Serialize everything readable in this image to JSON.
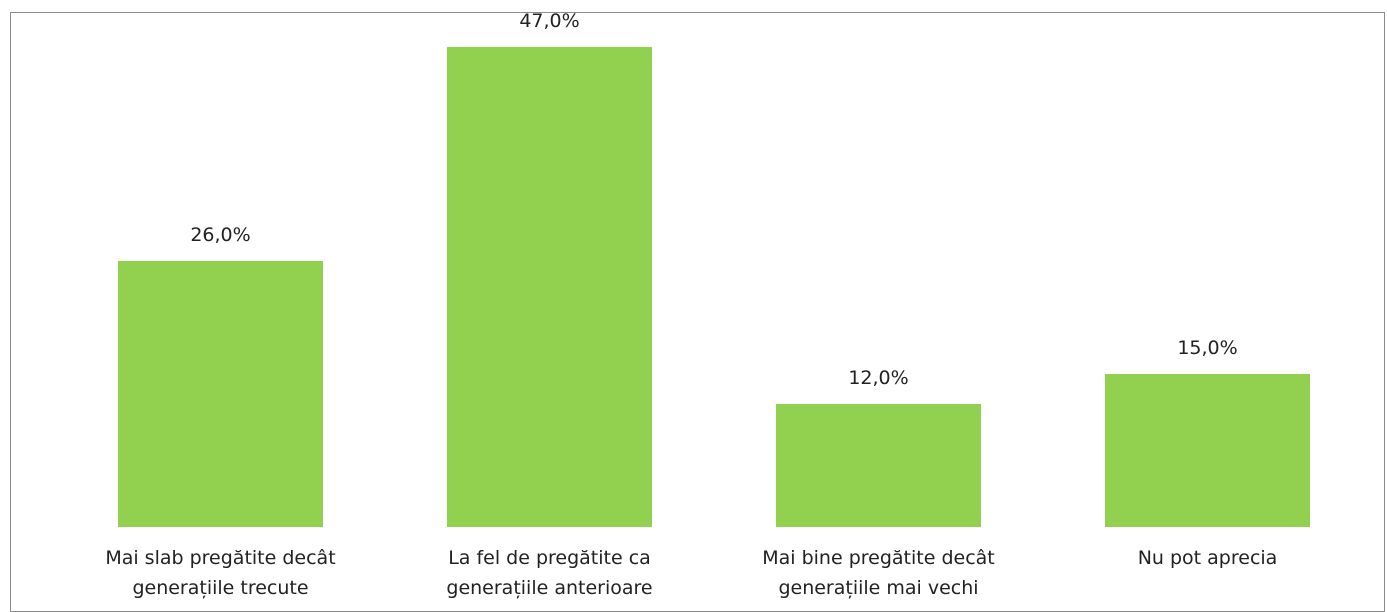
{
  "chart_data": {
    "type": "bar",
    "categories": [
      "Mai slab pregătite decât generațiile trecute",
      "La fel de pregătite ca generațiile anterioare",
      "Mai bine pregătite decât generațiile mai vechi",
      "Nu pot aprecia"
    ],
    "values": [
      26,
      47,
      12,
      15
    ],
    "value_labels": [
      "26,0%",
      "47,0%",
      "12,0%",
      "15,0%"
    ],
    "color": "#92d050"
  }
}
